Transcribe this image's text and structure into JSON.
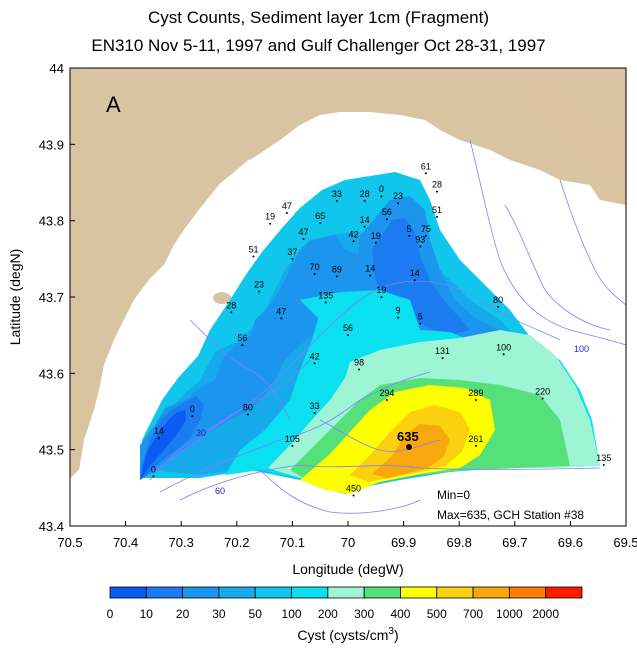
{
  "title": {
    "line1": "Cyst Counts, Sediment layer 1cm  (Fragment)",
    "line2": "EN310 Nov 5-11, 1997 and Gulf Challenger Oct 28-31, 1997"
  },
  "panel_letter": "A",
  "axes": {
    "xlabel": "Longitude (degW)",
    "ylabel": "Latitude (degN)",
    "x_ticks": [
      "70.5",
      "70.4",
      "70.3",
      "70.2",
      "70.1",
      "70",
      "69.9",
      "69.8",
      "69.7",
      "69.6",
      "69.5"
    ],
    "y_ticks": [
      "43.4",
      "43.5",
      "43.6",
      "43.7",
      "43.8",
      "43.9",
      "44"
    ],
    "xlim": [
      70.5,
      69.5
    ],
    "ylim": [
      43.4,
      44.0
    ]
  },
  "info": {
    "min_text": "Min=0",
    "max_text": "Max=635, GCH Station #38"
  },
  "isobath_labels": [
    "100",
    "60",
    "30"
  ],
  "max_value_label": "635",
  "colorbar": {
    "title": "Cyst (cysts/cm",
    "title_sup": "3",
    "title_close": ")",
    "levels": [
      "0",
      "10",
      "20",
      "30",
      "50",
      "100",
      "200",
      "300",
      "400",
      "500",
      "700",
      "1000",
      "2000"
    ],
    "colors": [
      "#0a5cf5",
      "#1a7cf0",
      "#1c95ee",
      "#16aaeb",
      "#10c6ec",
      "#0ae0ef",
      "#9ef5d6",
      "#55e07a",
      "#ffff00",
      "#fbd00e",
      "#f8a80c",
      "#ff7f00",
      "#ff1a00"
    ]
  },
  "colors": {
    "land": "#d9c4a2",
    "isobath": "#7f7fff",
    "frame": "#000000"
  },
  "stations": [
    {
      "value": "61",
      "lon": 69.86,
      "lat": 43.862
    },
    {
      "value": "28",
      "lon": 69.84,
      "lat": 43.838
    },
    {
      "value": "0",
      "lon": 69.94,
      "lat": 43.832
    },
    {
      "value": "23",
      "lon": 69.91,
      "lat": 43.823
    },
    {
      "value": "28",
      "lon": 69.97,
      "lat": 43.826
    },
    {
      "value": "33",
      "lon": 70.02,
      "lat": 43.826
    },
    {
      "value": "51",
      "lon": 69.84,
      "lat": 43.805
    },
    {
      "value": "56",
      "lon": 69.93,
      "lat": 43.802
    },
    {
      "value": "47",
      "lon": 70.11,
      "lat": 43.81
    },
    {
      "value": "19",
      "lon": 70.14,
      "lat": 43.796
    },
    {
      "value": "65",
      "lon": 70.05,
      "lat": 43.797
    },
    {
      "value": "14",
      "lon": 69.97,
      "lat": 43.792
    },
    {
      "value": "5",
      "lon": 69.89,
      "lat": 43.78
    },
    {
      "value": "75",
      "lon": 69.86,
      "lat": 43.78
    },
    {
      "value": "47",
      "lon": 70.08,
      "lat": 43.776
    },
    {
      "value": "42",
      "lon": 69.99,
      "lat": 43.773
    },
    {
      "value": "19",
      "lon": 69.95,
      "lat": 43.771
    },
    {
      "value": "93",
      "lon": 69.87,
      "lat": 43.766
    },
    {
      "value": "51",
      "lon": 70.17,
      "lat": 43.753
    },
    {
      "value": "37",
      "lon": 70.1,
      "lat": 43.75
    },
    {
      "value": "70",
      "lon": 70.06,
      "lat": 43.73
    },
    {
      "value": "89",
      "lon": 70.02,
      "lat": 43.727
    },
    {
      "value": "14",
      "lon": 69.96,
      "lat": 43.728
    },
    {
      "value": "14",
      "lon": 69.88,
      "lat": 43.722
    },
    {
      "value": "23",
      "lon": 70.16,
      "lat": 43.707
    },
    {
      "value": "19",
      "lon": 69.94,
      "lat": 43.7
    },
    {
      "value": "135",
      "lon": 70.04,
      "lat": 43.693
    },
    {
      "value": "80",
      "lon": 69.73,
      "lat": 43.687
    },
    {
      "value": "28",
      "lon": 70.21,
      "lat": 43.68
    },
    {
      "value": "47",
      "lon": 70.12,
      "lat": 43.672
    },
    {
      "value": "9",
      "lon": 69.91,
      "lat": 43.673
    },
    {
      "value": "5",
      "lon": 69.87,
      "lat": 43.665
    },
    {
      "value": "56",
      "lon": 70.0,
      "lat": 43.65
    },
    {
      "value": "56",
      "lon": 70.19,
      "lat": 43.637
    },
    {
      "value": "131",
      "lon": 69.83,
      "lat": 43.62
    },
    {
      "value": "100",
      "lon": 69.72,
      "lat": 43.625
    },
    {
      "value": "42",
      "lon": 70.06,
      "lat": 43.613
    },
    {
      "value": "98",
      "lon": 69.98,
      "lat": 43.605
    },
    {
      "value": "294",
      "lon": 69.93,
      "lat": 43.565
    },
    {
      "value": "289",
      "lon": 69.77,
      "lat": 43.565
    },
    {
      "value": "220",
      "lon": 69.65,
      "lat": 43.567
    },
    {
      "value": "80",
      "lon": 70.18,
      "lat": 43.546
    },
    {
      "value": "0",
      "lon": 70.28,
      "lat": 43.544
    },
    {
      "value": "33",
      "lon": 70.06,
      "lat": 43.548
    },
    {
      "value": "14",
      "lon": 70.34,
      "lat": 43.515
    },
    {
      "value": "105",
      "lon": 70.1,
      "lat": 43.505
    },
    {
      "value": "261",
      "lon": 69.77,
      "lat": 43.505
    },
    {
      "value": "0",
      "lon": 70.35,
      "lat": 43.465
    },
    {
      "value": "450",
      "lon": 69.99,
      "lat": 43.44
    },
    {
      "value": "135",
      "lon": 69.54,
      "lat": 43.48
    }
  ]
}
